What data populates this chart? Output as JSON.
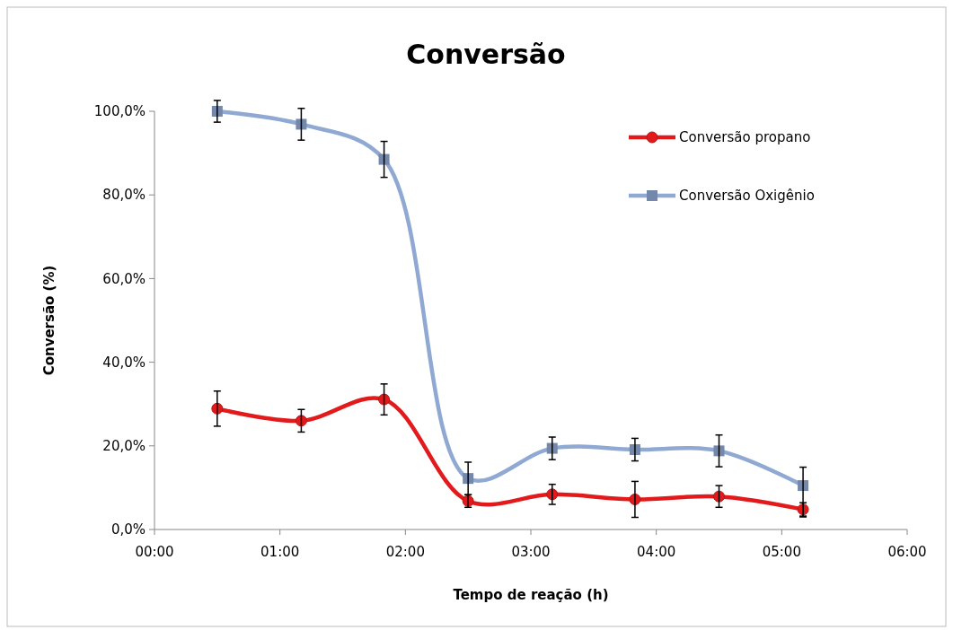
{
  "chart_data": {
    "type": "line",
    "title": "Conversão",
    "xlabel": "Tempo de reação (h)",
    "ylabel": "Conversão (%)",
    "x": [
      0.5,
      1.17,
      1.83,
      2.5,
      3.17,
      3.83,
      4.5,
      5.17
    ],
    "series": [
      {
        "name": "Conversão propano",
        "color": "#e31a1c",
        "marker": "circle",
        "values": [
          28.9,
          26.0,
          31.1,
          6.8,
          8.4,
          7.2,
          7.9,
          4.8
        ],
        "errors": [
          4.2,
          2.7,
          3.7,
          1.5,
          2.4,
          4.3,
          2.6,
          1.6
        ]
      },
      {
        "name": "Conversão Oxigênio",
        "color": "#8fa9d3",
        "marker": "square",
        "values": [
          100.0,
          96.9,
          88.5,
          12.2,
          19.4,
          19.1,
          18.8,
          10.5
        ],
        "errors": [
          2.6,
          3.8,
          4.3,
          3.9,
          2.7,
          2.7,
          3.8,
          [
            3.0,
            14.9
          ]
        ]
      }
    ],
    "xlim": [
      0,
      6
    ],
    "xticks": [
      {
        "value": 0,
        "label": "00:00"
      },
      {
        "value": 1,
        "label": "01:00"
      },
      {
        "value": 2,
        "label": "02:00"
      },
      {
        "value": 3,
        "label": "03:00"
      },
      {
        "value": 4,
        "label": "04:00"
      },
      {
        "value": 5,
        "label": "05:00"
      },
      {
        "value": 6,
        "label": "06:00"
      }
    ],
    "ylim": [
      0,
      100
    ],
    "yticks": [
      {
        "value": 0,
        "label": "0,0%"
      },
      {
        "value": 20,
        "label": "20,0%"
      },
      {
        "value": 40,
        "label": "40,0%"
      },
      {
        "value": 60,
        "label": "60,0%"
      },
      {
        "value": 80,
        "label": "80,0%"
      },
      {
        "value": 100,
        "label": "100,0%"
      }
    ],
    "grid": false,
    "legend": "top right",
    "line_style": "solid"
  }
}
